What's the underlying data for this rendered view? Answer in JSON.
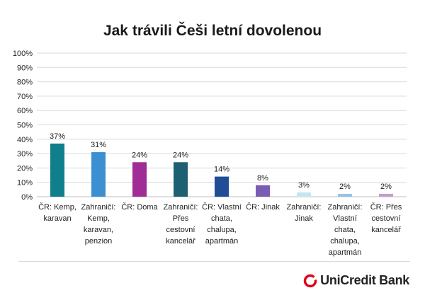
{
  "chart_data": {
    "type": "bar",
    "title": "Jak trávili Češi letní dovolenou",
    "categories": [
      [
        "ČR: Kemp,",
        "karavan"
      ],
      [
        "Zahraničí:",
        "Kemp,",
        "karavan,",
        "penzion"
      ],
      [
        "ČR: Doma"
      ],
      [
        "Zahraničí:",
        "Přes",
        "cestovní",
        "kancelář"
      ],
      [
        "ČR: Vlastní",
        "chata,",
        "chalupa,",
        "apartmán"
      ],
      [
        "ČR: Jinak"
      ],
      [
        "Zahraničí:",
        "Jinak"
      ],
      [
        "Zahraničí:",
        "Vlastní",
        "chata,",
        "chalupa,",
        "apartmán"
      ],
      [
        "ČR: Přes",
        "cestovní",
        "kancelář"
      ]
    ],
    "values": [
      37,
      31,
      24,
      24,
      14,
      8,
      3,
      2,
      2
    ],
    "data_labels": [
      "37%",
      "31%",
      "24%",
      "24%",
      "14%",
      "8%",
      "3%",
      "2%",
      "2%"
    ],
    "bar_colors": [
      "#0f7f8c",
      "#3c8fd0",
      "#a02c96",
      "#1d6072",
      "#1f4e96",
      "#7b5cb5",
      "#c4e6f2",
      "#97c2e6",
      "#c79ad6"
    ],
    "ylim": [
      0,
      100
    ],
    "yticks": [
      "0%",
      "10%",
      "20%",
      "30%",
      "40%",
      "50%",
      "60%",
      "70%",
      "80%",
      "90%",
      "100%"
    ],
    "grid": true,
    "xlabel": "",
    "ylabel": ""
  },
  "brand": {
    "name": "UniCredit Bank",
    "color": "#e2001a"
  }
}
